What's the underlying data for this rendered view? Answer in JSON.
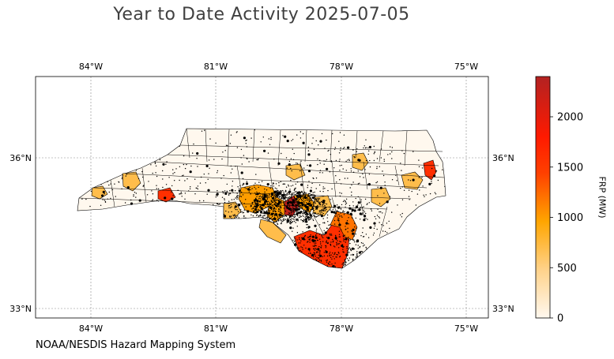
{
  "header": {
    "title": "Year to Date Activity 2025-07-05"
  },
  "footer": {
    "source": "NOAA/NESDIS Hazard Mapping System"
  },
  "colorbar": {
    "label": "FRP (MW)",
    "ticks": [
      "0",
      "500",
      "1000",
      "1500",
      "2000"
    ]
  },
  "colors": {
    "low": "#fff5e0",
    "mid": "#ffa500",
    "high": "#ff1a00",
    "max": "#b22222",
    "points": "#000000"
  },
  "chart_data": {
    "type": "choropleth",
    "title": "Year to Date Activity 2025-07-05",
    "region": "North Carolina counties",
    "lon_ticks": [
      "84°W",
      "81°W",
      "78°W",
      "75°W"
    ],
    "lat_ticks": [
      "36°N",
      "33°N"
    ],
    "lon_range": [
      -85.3,
      -74.5
    ],
    "lat_range": [
      32.85,
      37.55
    ],
    "grid": true,
    "colorbar_range": [
      0,
      2400
    ],
    "colorbar_label": "FRP (MW)",
    "hotspots": [
      {
        "name": "Southeastern coastal counties",
        "frp": 1600
      },
      {
        "name": "Central Piedmont cluster",
        "frp": 1000
      },
      {
        "name": "Central dark core",
        "frp": 2300
      },
      {
        "name": "Southwest mountain county",
        "frp": 1600
      },
      {
        "name": "Northeast coast county",
        "frp": 1600
      },
      {
        "name": "Southern coastal plain",
        "frp": 1200
      },
      {
        "name": "Eastern interior",
        "frp": 700
      }
    ]
  }
}
